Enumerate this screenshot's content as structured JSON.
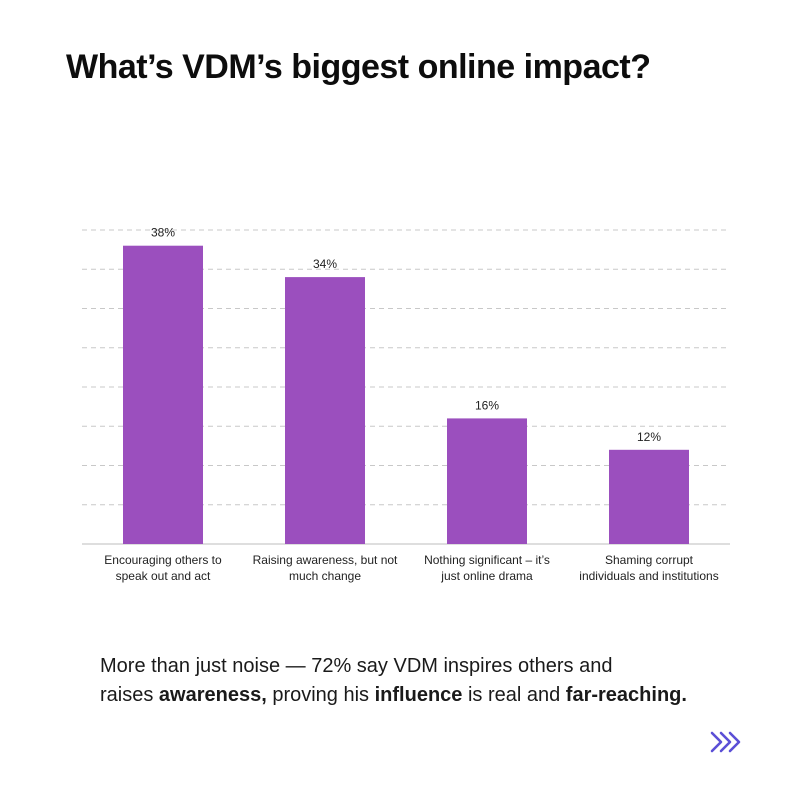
{
  "title": "What’s VDM’s biggest online impact?",
  "chart_data": {
    "type": "bar",
    "categories": [
      [
        "Encouraging others to",
        "speak out and act"
      ],
      [
        "Raising awareness, but not",
        "much change"
      ],
      [
        "Nothing significant – it’s",
        "just online drama"
      ],
      [
        "Shaming corrupt",
        "individuals and institutions"
      ]
    ],
    "values": [
      38,
      34,
      16,
      12
    ],
    "value_labels": [
      "38%",
      "34%",
      "16%",
      "12%"
    ],
    "ylim": [
      0,
      40
    ],
    "grid": true,
    "bar_color": "#9b4fbe"
  },
  "caption": {
    "line1": "More than just noise — 72% say VDM inspires others and",
    "line2_a": "raises ",
    "line2_b": "awareness,",
    "line2_c": " proving his ",
    "line2_d": "influence",
    "line2_e": " is real and ",
    "line2_f": "far-reaching."
  },
  "next_icon": "double-chevron-right-icon",
  "accent_color": "#5b4fd6"
}
